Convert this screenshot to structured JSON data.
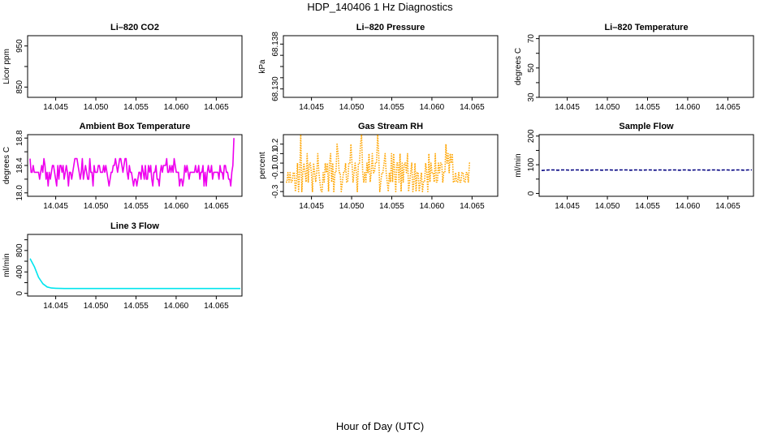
{
  "title": "HDP_140406  1 Hz Diagnostics",
  "x_axis_label": "Hour of Day (UTC)",
  "colors": {
    "axes": "#000000",
    "magenta": "#ee00ee",
    "orange": "#ffa500",
    "navy": "#000080",
    "cyan": "#00e5ee"
  },
  "chart_data": [
    {
      "id": "co2",
      "type": "line",
      "title": "Li–820 CO2",
      "ylabel": "Licor ppm",
      "xlim": [
        14.0415,
        14.0682
      ],
      "ylim": [
        825,
        975
      ],
      "xticks": [
        14.045,
        14.05,
        14.055,
        14.06,
        14.065
      ],
      "yticks": [
        850,
        900,
        950
      ],
      "ytick_labels": [
        "850",
        "",
        "950"
      ],
      "series": []
    },
    {
      "id": "pressure",
      "type": "line",
      "title": "Li–820 Pressure",
      "ylabel": "kPa",
      "xlim": [
        14.0415,
        14.0682
      ],
      "ylim": [
        68.1285,
        68.1395
      ],
      "xticks": [
        14.045,
        14.05,
        14.055,
        14.06,
        14.065
      ],
      "yticks": [
        68.13,
        68.132,
        68.134,
        68.136,
        68.138
      ],
      "ytick_labels": [
        "68.130",
        "",
        "",
        "",
        "68.138"
      ],
      "series": []
    },
    {
      "id": "temperature",
      "type": "line",
      "title": "Li–820 Temperature",
      "ylabel": "degrees C",
      "xlim": [
        14.0415,
        14.0682
      ],
      "ylim": [
        30,
        72
      ],
      "xticks": [
        14.045,
        14.05,
        14.055,
        14.06,
        14.065
      ],
      "yticks": [
        30,
        40,
        50,
        60,
        70
      ],
      "ytick_labels": [
        "30",
        "",
        "50",
        "",
        "70"
      ],
      "series": []
    },
    {
      "id": "box-temp",
      "type": "line",
      "title": "Ambient Box Temperature",
      "ylabel": "degrees C",
      "xlim": [
        14.0415,
        14.0682
      ],
      "ylim": [
        17.95,
        18.85
      ],
      "xticks": [
        14.045,
        14.05,
        14.055,
        14.06,
        14.065
      ],
      "yticks": [
        18.0,
        18.2,
        18.4,
        18.6,
        18.8
      ],
      "ytick_labels": [
        "18.0",
        "",
        "18.4",
        "",
        "18.8"
      ],
      "series": [
        {
          "name": "Ambient Box Temperature",
          "color": "#ee00ee",
          "style": "solid",
          "x_start": 14.0418,
          "x_step": 0.000133,
          "values": [
            18.5,
            18.3,
            18.3,
            18.4,
            18.3,
            18.3,
            18.3,
            18.3,
            18.3,
            18.2,
            18.3,
            18.4,
            18.3,
            18.5,
            18.4,
            18.2,
            18.3,
            18.1,
            18.3,
            18.2,
            18.3,
            18.4,
            18.4,
            18.3,
            18.2,
            18.1,
            18.4,
            18.2,
            18.4,
            18.4,
            18.3,
            18.4,
            18.2,
            18.3,
            18.4,
            18.3,
            18.1,
            18.3,
            18.3,
            18.2,
            18.3,
            18.4,
            18.5,
            18.5,
            18.5,
            18.4,
            18.3,
            18.2,
            18.3,
            18.5,
            18.2,
            18.3,
            18.4,
            18.3,
            18.2,
            18.2,
            18.5,
            18.3,
            18.3,
            18.1,
            18.4,
            18.3,
            18.3,
            18.3,
            18.4,
            18.4,
            18.3,
            18.3,
            18.3,
            18.4,
            18.3,
            18.4,
            18.3,
            18.2,
            18.1,
            18.2,
            18.3,
            18.3,
            18.4,
            18.4,
            18.5,
            18.4,
            18.3,
            18.4,
            18.5,
            18.5,
            18.4,
            18.3,
            18.4,
            18.5,
            18.5,
            18.3,
            18.2,
            18.4,
            18.3,
            18.3,
            18.2,
            18.1,
            18.2,
            18.2,
            18.1,
            18.2,
            18.3,
            18.3,
            18.2,
            18.4,
            18.3,
            18.2,
            18.4,
            18.2,
            18.2,
            18.4,
            18.3,
            18.4,
            18.2,
            18.1,
            18.3,
            18.3,
            18.4,
            18.2,
            18.2,
            18.1,
            18.3,
            18.4,
            18.3,
            18.4,
            18.4,
            18.4,
            18.5,
            18.3,
            18.3,
            18.4,
            18.3,
            18.4,
            18.3,
            18.5,
            18.4,
            18.3,
            18.3,
            18.3,
            18.1,
            18.2,
            18.2,
            18.1,
            18.2,
            18.4,
            18.3,
            18.4,
            18.3,
            18.2,
            18.3,
            18.3,
            18.3,
            18.3,
            18.3,
            18.4,
            18.3,
            18.3,
            18.4,
            18.2,
            18.3,
            18.3,
            18.4,
            18.1,
            18.3,
            18.1,
            18.3,
            18.4,
            18.3,
            18.3,
            18.4,
            18.2,
            18.3,
            18.3,
            18.3,
            18.3,
            18.3,
            18.2,
            18.4,
            18.3,
            18.3,
            18.2,
            18.4,
            18.4,
            18.3,
            18.3,
            18.2,
            18.2,
            18.1,
            18.3,
            18.4,
            18.8
          ]
        }
      ]
    },
    {
      "id": "rh",
      "type": "line",
      "title": "Gas Stream RH",
      "ylabel": "percent",
      "xlim": [
        14.0415,
        14.0682
      ],
      "ylim": [
        -0.35,
        0.3
      ],
      "xticks": [
        14.045,
        14.05,
        14.055,
        14.06,
        14.065
      ],
      "yticks": [
        -0.3,
        -0.2,
        -0.1,
        0.0,
        0.1,
        0.2
      ],
      "ytick_labels": [
        "-0.3",
        "",
        "-0.1",
        "0.0",
        "0.1",
        "0.2"
      ],
      "series": [
        {
          "name": "Gas Stream RH",
          "color": "#ffa500",
          "style": "dotted",
          "x_start": 14.0418,
          "x_step": 0.000133,
          "values": [
            -0.2,
            -0.2,
            -0.1,
            -0.2,
            -0.1,
            -0.2,
            -0.2,
            -0.1,
            -0.1,
            -0.3,
            -0.2,
            0.0,
            -0.3,
            -0.1,
            0.3,
            -0.3,
            -0.1,
            0.0,
            -0.1,
            -0.2,
            0.1,
            -0.2,
            0.0,
            0.0,
            -0.1,
            -0.3,
            0.0,
            -0.1,
            -0.2,
            -0.1,
            0.1,
            -0.1,
            -0.2,
            -0.3,
            -0.3,
            -0.1,
            -0.2,
            0.0,
            -0.1,
            0.0,
            -0.3,
            0.0,
            0.1,
            -0.2,
            0.0,
            -0.3,
            -0.1,
            -0.1,
            0.2,
            0.1,
            -0.1,
            -0.1,
            -0.3,
            -0.2,
            -0.1,
            -0.1,
            0.0,
            -0.2,
            -0.2,
            0.0,
            0.0,
            0.2,
            0.0,
            -0.2,
            -0.1,
            0.0,
            -0.1,
            -0.3,
            0.0,
            0.0,
            0.2,
            0.3,
            -0.1,
            -0.2,
            -0.1,
            -0.2,
            0.0,
            -0.1,
            0.1,
            -0.2,
            -0.1,
            0.1,
            -0.1,
            -0.1,
            0.0,
            0.0,
            0.3,
            0.1,
            -0.3,
            -0.2,
            -0.1,
            -0.1,
            0.0,
            0.1,
            -0.1,
            -0.2,
            -0.3,
            -0.1,
            -0.2,
            0.1,
            -0.2,
            0.1,
            -0.1,
            -0.3,
            0.0,
            0.0,
            -0.2,
            0.1,
            -0.3,
            0.0,
            -0.2,
            0.0,
            0.0,
            -0.1,
            0.1,
            -0.3,
            -0.2,
            -0.1,
            0.0,
            -0.3,
            -0.2,
            0.0,
            -0.3,
            -0.1,
            -0.1,
            -0.3,
            -0.2,
            -0.1,
            -0.3,
            -0.2,
            -0.2,
            0.0,
            -0.1,
            -0.3,
            0.1,
            -0.2,
            0.0,
            -0.1,
            -0.1,
            -0.2,
            0.1,
            -0.2,
            -0.2,
            0.0,
            -0.1,
            0.0,
            0.0,
            -0.2,
            -0.1,
            -0.1,
            0.2,
            0.0,
            0.1,
            -0.1,
            0.1,
            0.0,
            0.1,
            -0.2,
            -0.2,
            -0.1,
            -0.2,
            -0.2,
            -0.1,
            -0.2,
            -0.2,
            -0.1,
            -0.1,
            -0.2,
            -0.2,
            -0.1,
            -0.1,
            -0.2,
            0.0,
            0.0
          ]
        }
      ]
    },
    {
      "id": "sample-flow",
      "type": "line",
      "title": "Sample Flow",
      "ylabel": "ml/min",
      "xlim": [
        14.0415,
        14.0682
      ],
      "ylim": [
        -10,
        205
      ],
      "xticks": [
        14.045,
        14.05,
        14.055,
        14.06,
        14.065
      ],
      "yticks": [
        0,
        50,
        100,
        150,
        200
      ],
      "ytick_labels": [
        "0",
        "",
        "100",
        "",
        "200"
      ],
      "series": [
        {
          "name": "Sample Flow",
          "color": "#000080",
          "style": "dashed",
          "x_start": 14.0418,
          "x_end": 14.068,
          "values": [
            80,
            81,
            82,
            82,
            81,
            82,
            82,
            81,
            82,
            82,
            81,
            82,
            81,
            82,
            82,
            81,
            82,
            82,
            81,
            82,
            82,
            82,
            81,
            82,
            82,
            81,
            82,
            82,
            81,
            82,
            82,
            81,
            82,
            82,
            81,
            82,
            82,
            81,
            82,
            82,
            82,
            81,
            82,
            82,
            81,
            82,
            82,
            81,
            82,
            82,
            81,
            82,
            82
          ]
        }
      ]
    },
    {
      "id": "line3-flow",
      "type": "line",
      "title": "Line 3 Flow",
      "ylabel": "ml/min",
      "xlim": [
        14.0415,
        14.0682
      ],
      "ylim": [
        -50,
        1100
      ],
      "xticks": [
        14.045,
        14.05,
        14.055,
        14.06,
        14.065
      ],
      "yticks": [
        0,
        200,
        400,
        600,
        800,
        1000
      ],
      "ytick_labels": [
        "0",
        "",
        "400",
        "",
        "800",
        ""
      ],
      "series": [
        {
          "name": "Line 3 Flow",
          "color": "#00e5ee",
          "style": "solid",
          "x_start": 14.0418,
          "x_end": 14.068,
          "values": [
            650,
            500,
            300,
            180,
            120,
            100,
            95,
            92,
            90,
            90,
            90,
            90,
            90,
            90,
            90,
            90,
            90,
            90,
            90,
            90,
            90,
            90,
            90,
            90,
            90,
            90,
            90,
            90,
            90,
            90,
            90,
            90,
            90,
            90,
            90,
            90,
            90,
            90,
            90,
            90,
            90,
            90,
            90,
            90,
            90,
            90,
            90,
            90,
            90,
            90
          ]
        }
      ]
    }
  ]
}
